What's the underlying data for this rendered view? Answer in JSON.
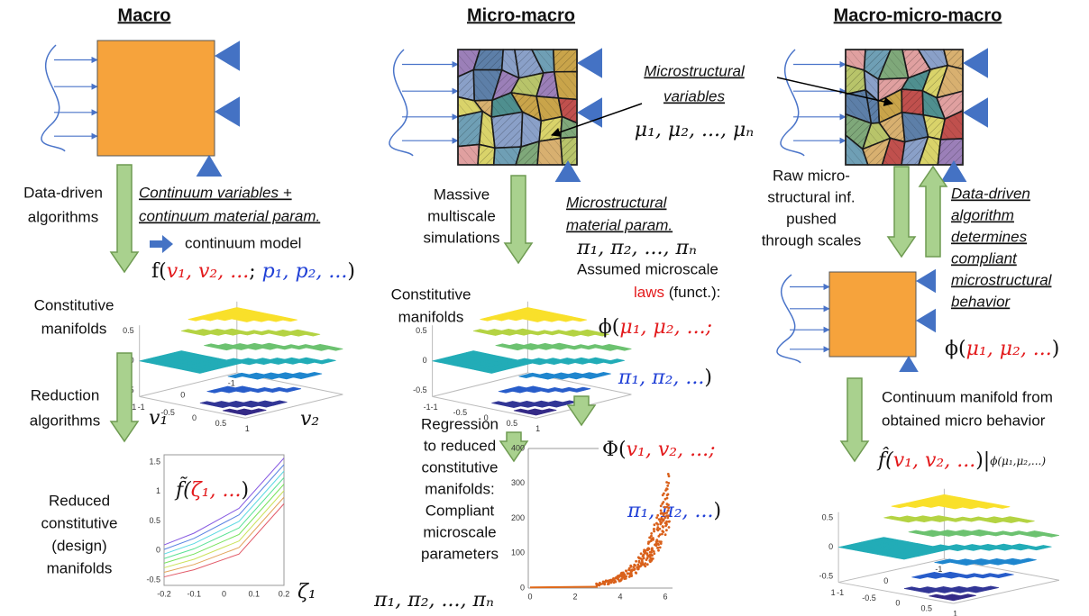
{
  "macro": {
    "title": "Macro",
    "step1_label": [
      "Data-driven",
      "algorithms"
    ],
    "continuum_label": [
      "Continuum variables +",
      "continuum material param."
    ],
    "model_label": "continuum model",
    "formula": [
      "f(",
      "v₁, v₂, ...",
      "; ",
      "p₁, p₂, ...",
      ")"
    ],
    "manifold_label": [
      "Constitutive",
      "manifolds"
    ],
    "step2_label": [
      "Reduction",
      "algorithms"
    ],
    "axis_u": "v₁",
    "axis_v": "v₂",
    "plot3d": {
      "z_ticks": [
        "0.5",
        "0",
        "-0.5"
      ],
      "u_ticks": [
        "-1",
        "0",
        "1"
      ],
      "v_ticks": [
        "-1",
        "-0.5",
        "0",
        "0.5",
        "1"
      ]
    },
    "reduced_label": [
      "Reduced",
      "constitutive",
      "(design)",
      "manifolds"
    ],
    "reduced_formula": [
      "f̃(",
      "ζ₁, ...",
      ")"
    ],
    "reduced_axis": "ζ₁",
    "plot2d": {
      "y_ticks": [
        "1.5",
        "1",
        "0.5",
        "0",
        "-0.5"
      ],
      "x_ticks": [
        "-0.2",
        "-0.1",
        "0",
        "0.1",
        "0.2"
      ]
    }
  },
  "micro_macro": {
    "title": "Micro-macro",
    "micro_label": [
      "Microstructural",
      "variables"
    ],
    "micro_vars": "μ₁, μ₂, ..., μₙ",
    "step1_label": [
      "Massive",
      "multiscale",
      "simulations"
    ],
    "param_label": [
      "Microstructural",
      "material param."
    ],
    "param_vars": "π₁, π₂, ..., πₙ",
    "manifold_label": [
      "Constitutive",
      "manifolds"
    ],
    "assumed_label": [
      "Assumed microscale",
      "laws",
      " (funct.):"
    ],
    "phi_formula": [
      [
        "ϕ(",
        "μ₁, μ₂, ...;"
      ],
      [
        "π₁, π₂, ...",
        ")"
      ]
    ],
    "Phi_formula": [
      [
        "Φ(",
        "v₁, v₂, ...;"
      ],
      [
        "π₁, π₂, ...",
        ")"
      ]
    ],
    "plot3d": {
      "z_ticks": [
        "0.5",
        "0",
        "-0.5"
      ],
      "u_ticks": [
        "-1"
      ],
      "v_ticks": [
        "-1",
        "-0.5",
        "0",
        "0.5",
        "1"
      ]
    },
    "regression_label": [
      "Regression",
      "to reduced",
      "constitutive",
      "manifolds:",
      "Compliant",
      "microscale",
      "parameters"
    ],
    "bottom_vars": "π₁, π₂, ..., πₙ",
    "scatter": {
      "y_ticks": [
        "400",
        "300",
        "200",
        "100",
        "0"
      ],
      "x_ticks": [
        "0",
        "2",
        "4",
        "6"
      ]
    }
  },
  "macro_micro_macro": {
    "title": "Macro-micro-macro",
    "raw_label": [
      "Raw micro-",
      "structural inf.",
      "pushed",
      "through scales"
    ],
    "algo_label": [
      "Data-driven",
      "algorithm",
      "determines",
      "compliant",
      "microstructural",
      "behavior"
    ],
    "phi_formula": [
      "ϕ(",
      "μ₁, μ₂, ...",
      ")"
    ],
    "manifold_label": [
      "Continuum manifold from",
      "obtained micro behavior"
    ],
    "formula": [
      "f̂(",
      "v₁, v₂, ...",
      ")|",
      "ϕ(μ₁,μ₂,...)"
    ],
    "plot3d": {
      "z_ticks": [
        "0.5",
        "0",
        "-0.5"
      ],
      "u_ticks": [
        "-1",
        "0",
        "1"
      ],
      "v_ticks": [
        "-1",
        "-0.5",
        "0",
        "0.5",
        "1"
      ]
    }
  }
}
